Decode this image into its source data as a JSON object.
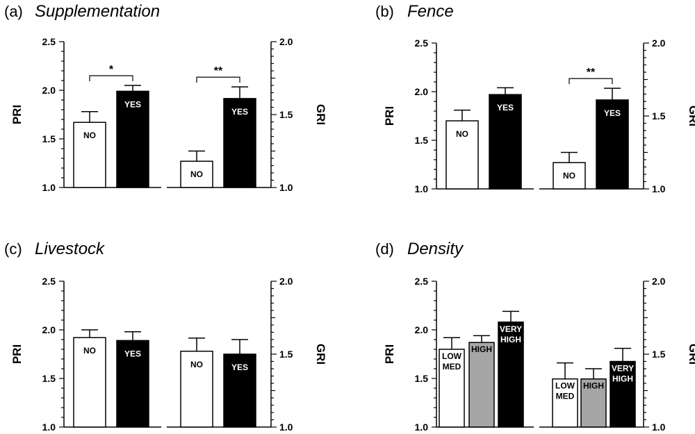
{
  "colors": {
    "no": "#ffffff",
    "yes": "#000000",
    "low_med": "#ffffff",
    "high": "#a6a6a6",
    "very_high": "#000000",
    "axis": "#000000"
  },
  "chart_data": [
    {
      "type": "bar",
      "panel": "(a)",
      "title": "Supplementation",
      "ylabel": "PRI",
      "y2label": "GRI",
      "ylim": [
        1.0,
        2.5
      ],
      "y2lim": [
        1.0,
        2.0
      ],
      "yticks": [
        "1.0",
        "1.5",
        "2.0",
        "2.5"
      ],
      "y2ticks": [
        "1.0",
        "1.5",
        "2.0"
      ],
      "groups": [
        {
          "axis": "PRI",
          "bars": [
            {
              "label": "NO",
              "value": 1.67,
              "error": 0.11,
              "fill": "no"
            },
            {
              "label": "YES",
              "value": 1.99,
              "error": 0.06,
              "fill": "yes"
            }
          ],
          "significance": "*"
        },
        {
          "axis": "GRI",
          "bars": [
            {
              "label": "NO",
              "value": 1.18,
              "error": 0.07,
              "fill": "no"
            },
            {
              "label": "YES",
              "value": 1.61,
              "error": 0.08,
              "fill": "yes"
            }
          ],
          "significance": "**"
        }
      ]
    },
    {
      "type": "bar",
      "panel": "(b)",
      "title": "Fence",
      "ylabel": "PRI",
      "y2label": "GRI",
      "ylim": [
        1.0,
        2.5
      ],
      "y2lim": [
        1.0,
        2.0
      ],
      "yticks": [
        "1.0",
        "1.5",
        "2.0",
        "2.5"
      ],
      "y2ticks": [
        "1.0",
        "1.5",
        "2.0"
      ],
      "groups": [
        {
          "axis": "PRI",
          "bars": [
            {
              "label": "NO",
              "value": 1.7,
              "error": 0.11,
              "fill": "no"
            },
            {
              "label": "YES",
              "value": 1.97,
              "error": 0.07,
              "fill": "yes"
            }
          ],
          "significance": ""
        },
        {
          "axis": "GRI",
          "bars": [
            {
              "label": "NO",
              "value": 1.18,
              "error": 0.07,
              "fill": "no"
            },
            {
              "label": "YES",
              "value": 1.61,
              "error": 0.08,
              "fill": "yes"
            }
          ],
          "significance": "**"
        }
      ]
    },
    {
      "type": "bar",
      "panel": "(c)",
      "title": "Livestock",
      "ylabel": "PRI",
      "y2label": "GRI",
      "ylim": [
        1.0,
        2.5
      ],
      "y2lim": [
        1.0,
        2.0
      ],
      "yticks": [
        "1.0",
        "1.5",
        "2.0",
        "2.5"
      ],
      "y2ticks": [
        "1.0",
        "1.5",
        "2.0"
      ],
      "groups": [
        {
          "axis": "PRI",
          "bars": [
            {
              "label": "NO",
              "value": 1.92,
              "error": 0.08,
              "fill": "no"
            },
            {
              "label": "YES",
              "value": 1.89,
              "error": 0.09,
              "fill": "yes"
            }
          ],
          "significance": ""
        },
        {
          "axis": "GRI",
          "bars": [
            {
              "label": "NO",
              "value": 1.52,
              "error": 0.09,
              "fill": "no"
            },
            {
              "label": "YES",
              "value": 1.5,
              "error": 0.1,
              "fill": "yes"
            }
          ],
          "significance": ""
        }
      ]
    },
    {
      "type": "bar",
      "panel": "(d)",
      "title": "Density",
      "ylabel": "PRI",
      "y2label": "GRI",
      "ylim": [
        1.0,
        2.5
      ],
      "y2lim": [
        1.0,
        2.0
      ],
      "yticks": [
        "1.0",
        "1.5",
        "2.0",
        "2.5"
      ],
      "y2ticks": [
        "1.0",
        "1.5",
        "2.0"
      ],
      "groups": [
        {
          "axis": "PRI",
          "bars": [
            {
              "label": "LOW MED",
              "value": 1.8,
              "error": 0.12,
              "fill": "low_med"
            },
            {
              "label": "HIGH",
              "value": 1.87,
              "error": 0.07,
              "fill": "high"
            },
            {
              "label": "VERY HIGH",
              "value": 2.08,
              "error": 0.11,
              "fill": "very_high"
            }
          ],
          "significance": ""
        },
        {
          "axis": "GRI",
          "bars": [
            {
              "label": "LOW MED",
              "value": 1.33,
              "error": 0.11,
              "fill": "low_med"
            },
            {
              "label": "HIGH",
              "value": 1.33,
              "error": 0.07,
              "fill": "high"
            },
            {
              "label": "VERY HIGH",
              "value": 1.45,
              "error": 0.09,
              "fill": "very_high"
            }
          ],
          "significance": ""
        }
      ]
    }
  ]
}
